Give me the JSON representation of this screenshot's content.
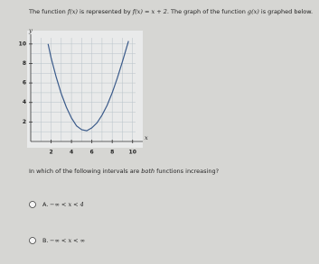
{
  "question": {
    "parts": [
      "The function ",
      "f(x)",
      " is represented by ",
      "f(x) = x + 2",
      ". The graph of the function ",
      "g(x)",
      " is graphed below."
    ]
  },
  "graph": {
    "x_label": "x",
    "y_label": "y",
    "xlim": [
      0,
      11
    ],
    "ylim": [
      0,
      11
    ],
    "xticks": [
      2,
      4,
      6,
      8,
      10
    ],
    "yticks": [
      2,
      4,
      6,
      8,
      10
    ],
    "curve": {
      "x": [
        1.7,
        2,
        2.5,
        3,
        3.5,
        4,
        4.5,
        5,
        5.5,
        6,
        6.5,
        7,
        7.5,
        8,
        8.5,
        9,
        9.6
      ],
      "y": [
        10,
        8.6,
        6.6,
        4.9,
        3.5,
        2.4,
        1.6,
        1.2,
        1.1,
        1.4,
        1.9,
        2.7,
        3.7,
        5,
        6.5,
        8.2,
        10.3
      ]
    }
  },
  "prompt": {
    "parts": [
      "In which of the following intervals are ",
      "both",
      " functions increasing?"
    ]
  },
  "options": [
    {
      "letter": "A.",
      "text": "−∞ < x < 4"
    },
    {
      "letter": "B.",
      "text": "−∞ < x < ∞"
    }
  ]
}
